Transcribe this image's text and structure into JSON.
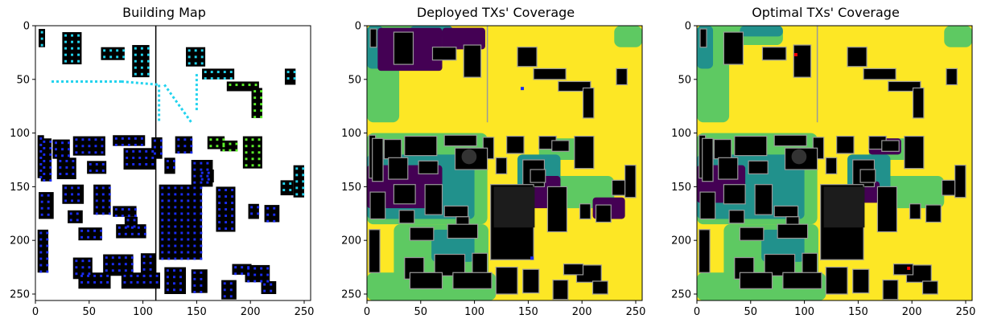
{
  "chart_data": [
    {
      "type": "heatmap",
      "title": "Building Map",
      "xlim": [
        0,
        256
      ],
      "ylim": [
        256,
        0
      ],
      "xticks": [
        0,
        50,
        100,
        150,
        200,
        250
      ],
      "yticks": [
        0,
        50,
        100,
        150,
        200,
        250
      ],
      "colors": {
        "background": "#ffffff",
        "building": "#000000",
        "tx_blue": "#1a2cf0",
        "tx_cyan": "#22d3ee",
        "tx_green": "#5cf02a"
      }
    },
    {
      "type": "heatmap",
      "title": "Deployed TXs' Coverage",
      "xlim": [
        0,
        256
      ],
      "ylim": [
        256,
        0
      ],
      "xticks": [
        0,
        50,
        100,
        150,
        200,
        250
      ],
      "yticks": [
        0,
        50,
        100,
        150,
        200,
        250
      ],
      "colors": {
        "level_high": "#fde725",
        "level_mid_high": "#5ec962",
        "level_mid": "#21918c",
        "level_low": "#440154",
        "building": "#000000",
        "building_top": "#1c1c1c",
        "tx": "#1a2cf0"
      }
    },
    {
      "type": "heatmap",
      "title": "Optimal TXs' Coverage",
      "xlim": [
        0,
        256
      ],
      "ylim": [
        256,
        0
      ],
      "xticks": [
        0,
        50,
        100,
        150,
        200,
        250
      ],
      "yticks": [
        0,
        50,
        100,
        150,
        200,
        250
      ],
      "colors": {
        "level_high": "#fde725",
        "level_mid_high": "#5ec962",
        "level_mid": "#21918c",
        "level_low": "#440154",
        "building": "#000000",
        "building_top": "#1c1c1c",
        "tx": "#ff0000"
      },
      "tx_points": [
        {
          "x": 92,
          "y": 27
        },
        {
          "x": 197,
          "y": 226
        }
      ]
    }
  ]
}
